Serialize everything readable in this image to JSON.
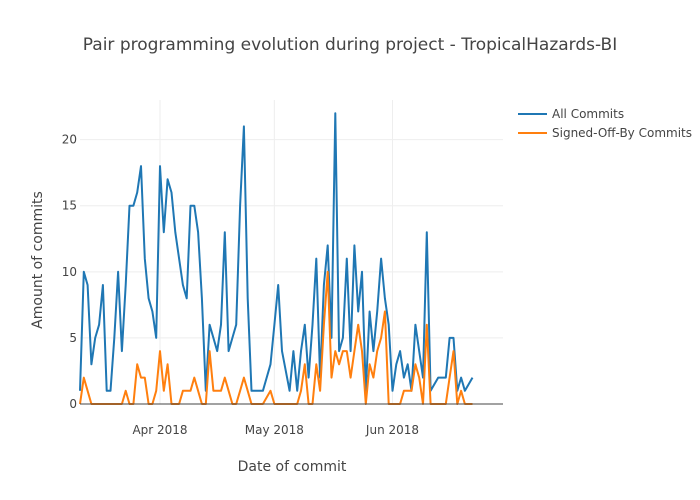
{
  "chart_data": {
    "type": "line",
    "title": "Pair programming evolution during project - TropicalHazards-BI",
    "xlabel": "Date of commit",
    "ylabel": "Amount of commits",
    "x_start": "2018-03-11",
    "x_end": "2018-06-30",
    "ylim": [
      0,
      23
    ],
    "yticks": [
      0,
      5,
      10,
      15,
      20
    ],
    "xticks": [
      {
        "date": "2018-04-01",
        "label": "Apr 2018"
      },
      {
        "date": "2018-05-01",
        "label": "May 2018"
      },
      {
        "date": "2018-06-01",
        "label": "Jun 2018"
      }
    ],
    "grid": true,
    "legend_position": "top-right",
    "series": [
      {
        "name": "All Commits",
        "color": "#1f77b4",
        "points": [
          [
            "2018-03-11",
            1
          ],
          [
            "2018-03-12",
            10
          ],
          [
            "2018-03-13",
            9
          ],
          [
            "2018-03-14",
            3
          ],
          [
            "2018-03-15",
            5
          ],
          [
            "2018-03-16",
            6
          ],
          [
            "2018-03-17",
            9
          ],
          [
            "2018-03-18",
            1
          ],
          [
            "2018-03-19",
            1
          ],
          [
            "2018-03-20",
            5
          ],
          [
            "2018-03-21",
            10
          ],
          [
            "2018-03-22",
            4
          ],
          [
            "2018-03-23",
            9
          ],
          [
            "2018-03-24",
            15
          ],
          [
            "2018-03-25",
            15
          ],
          [
            "2018-03-26",
            16
          ],
          [
            "2018-03-27",
            18
          ],
          [
            "2018-03-28",
            11
          ],
          [
            "2018-03-29",
            8
          ],
          [
            "2018-03-30",
            7
          ],
          [
            "2018-03-31",
            5
          ],
          [
            "2018-04-01",
            18
          ],
          [
            "2018-04-02",
            13
          ],
          [
            "2018-04-03",
            17
          ],
          [
            "2018-04-04",
            16
          ],
          [
            "2018-04-05",
            13
          ],
          [
            "2018-04-06",
            11
          ],
          [
            "2018-04-07",
            9
          ],
          [
            "2018-04-08",
            8
          ],
          [
            "2018-04-09",
            15
          ],
          [
            "2018-04-10",
            15
          ],
          [
            "2018-04-11",
            13
          ],
          [
            "2018-04-12",
            8
          ],
          [
            "2018-04-13",
            1
          ],
          [
            "2018-04-14",
            6
          ],
          [
            "2018-04-15",
            5
          ],
          [
            "2018-04-16",
            4
          ],
          [
            "2018-04-17",
            6
          ],
          [
            "2018-04-18",
            13
          ],
          [
            "2018-04-19",
            4
          ],
          [
            "2018-04-20",
            5
          ],
          [
            "2018-04-21",
            6
          ],
          [
            "2018-04-22",
            15
          ],
          [
            "2018-04-23",
            21
          ],
          [
            "2018-04-24",
            8
          ],
          [
            "2018-04-25",
            1
          ],
          [
            "2018-04-26",
            1
          ],
          [
            "2018-04-27",
            1
          ],
          [
            "2018-04-28",
            1
          ],
          [
            "2018-04-30",
            3
          ],
          [
            "2018-05-01",
            6
          ],
          [
            "2018-05-02",
            9
          ],
          [
            "2018-05-03",
            4
          ],
          [
            "2018-05-05",
            1
          ],
          [
            "2018-05-06",
            4
          ],
          [
            "2018-05-07",
            1
          ],
          [
            "2018-05-08",
            4
          ],
          [
            "2018-05-09",
            6
          ],
          [
            "2018-05-10",
            2
          ],
          [
            "2018-05-11",
            6
          ],
          [
            "2018-05-12",
            11
          ],
          [
            "2018-05-13",
            2
          ],
          [
            "2018-05-14",
            9
          ],
          [
            "2018-05-15",
            12
          ],
          [
            "2018-05-16",
            5
          ],
          [
            "2018-05-17",
            22
          ],
          [
            "2018-05-18",
            4
          ],
          [
            "2018-05-19",
            5
          ],
          [
            "2018-05-20",
            11
          ],
          [
            "2018-05-21",
            4
          ],
          [
            "2018-05-22",
            12
          ],
          [
            "2018-05-23",
            7
          ],
          [
            "2018-05-24",
            10
          ],
          [
            "2018-05-25",
            1
          ],
          [
            "2018-05-26",
            7
          ],
          [
            "2018-05-27",
            4
          ],
          [
            "2018-05-28",
            7
          ],
          [
            "2018-05-29",
            11
          ],
          [
            "2018-05-30",
            8
          ],
          [
            "2018-05-31",
            6
          ],
          [
            "2018-06-01",
            1
          ],
          [
            "2018-06-02",
            3
          ],
          [
            "2018-06-03",
            4
          ],
          [
            "2018-06-04",
            2
          ],
          [
            "2018-06-05",
            3
          ],
          [
            "2018-06-06",
            1
          ],
          [
            "2018-06-07",
            6
          ],
          [
            "2018-06-08",
            4
          ],
          [
            "2018-06-09",
            2
          ],
          [
            "2018-06-10",
            13
          ],
          [
            "2018-06-11",
            1
          ],
          [
            "2018-06-13",
            2
          ],
          [
            "2018-06-14",
            2
          ],
          [
            "2018-06-15",
            2
          ],
          [
            "2018-06-16",
            5
          ],
          [
            "2018-06-17",
            5
          ],
          [
            "2018-06-18",
            1
          ],
          [
            "2018-06-19",
            2
          ],
          [
            "2018-06-20",
            1
          ],
          [
            "2018-06-22",
            2
          ]
        ]
      },
      {
        "name": "Signed-Off-By Commits",
        "color": "#ff7f0e",
        "points": [
          [
            "2018-03-11",
            0
          ],
          [
            "2018-03-12",
            2
          ],
          [
            "2018-03-13",
            1
          ],
          [
            "2018-03-14",
            0
          ],
          [
            "2018-03-15",
            0
          ],
          [
            "2018-03-21",
            0
          ],
          [
            "2018-03-22",
            0
          ],
          [
            "2018-03-23",
            1
          ],
          [
            "2018-03-24",
            0
          ],
          [
            "2018-03-25",
            0
          ],
          [
            "2018-03-26",
            3
          ],
          [
            "2018-03-27",
            2
          ],
          [
            "2018-03-28",
            2
          ],
          [
            "2018-03-29",
            0
          ],
          [
            "2018-03-30",
            0
          ],
          [
            "2018-03-31",
            1
          ],
          [
            "2018-04-01",
            4
          ],
          [
            "2018-04-02",
            1
          ],
          [
            "2018-04-03",
            3
          ],
          [
            "2018-04-04",
            0
          ],
          [
            "2018-04-05",
            0
          ],
          [
            "2018-04-06",
            0
          ],
          [
            "2018-04-07",
            1
          ],
          [
            "2018-04-08",
            1
          ],
          [
            "2018-04-09",
            1
          ],
          [
            "2018-04-10",
            2
          ],
          [
            "2018-04-11",
            1
          ],
          [
            "2018-04-12",
            0
          ],
          [
            "2018-04-13",
            0
          ],
          [
            "2018-04-14",
            4
          ],
          [
            "2018-04-15",
            1
          ],
          [
            "2018-04-16",
            1
          ],
          [
            "2018-04-17",
            1
          ],
          [
            "2018-04-18",
            2
          ],
          [
            "2018-04-19",
            1
          ],
          [
            "2018-04-20",
            0
          ],
          [
            "2018-04-21",
            0
          ],
          [
            "2018-04-22",
            1
          ],
          [
            "2018-04-23",
            2
          ],
          [
            "2018-04-24",
            1
          ],
          [
            "2018-04-25",
            0
          ],
          [
            "2018-04-26",
            0
          ],
          [
            "2018-04-27",
            0
          ],
          [
            "2018-04-28",
            0
          ],
          [
            "2018-04-30",
            1
          ],
          [
            "2018-05-01",
            0
          ],
          [
            "2018-05-02",
            0
          ],
          [
            "2018-05-05",
            0
          ],
          [
            "2018-05-06",
            0
          ],
          [
            "2018-05-07",
            0
          ],
          [
            "2018-05-08",
            1
          ],
          [
            "2018-05-09",
            3
          ],
          [
            "2018-05-10",
            0
          ],
          [
            "2018-05-11",
            0
          ],
          [
            "2018-05-12",
            3
          ],
          [
            "2018-05-13",
            1
          ],
          [
            "2018-05-14",
            6
          ],
          [
            "2018-05-15",
            10
          ],
          [
            "2018-05-16",
            2
          ],
          [
            "2018-05-17",
            4
          ],
          [
            "2018-05-18",
            3
          ],
          [
            "2018-05-19",
            4
          ],
          [
            "2018-05-20",
            4
          ],
          [
            "2018-05-21",
            2
          ],
          [
            "2018-05-22",
            4
          ],
          [
            "2018-05-23",
            6
          ],
          [
            "2018-05-24",
            4
          ],
          [
            "2018-05-25",
            0
          ],
          [
            "2018-05-26",
            3
          ],
          [
            "2018-05-27",
            2
          ],
          [
            "2018-05-28",
            4
          ],
          [
            "2018-05-29",
            5
          ],
          [
            "2018-05-30",
            7
          ],
          [
            "2018-05-31",
            0
          ],
          [
            "2018-06-01",
            0
          ],
          [
            "2018-06-02",
            0
          ],
          [
            "2018-06-03",
            0
          ],
          [
            "2018-06-04",
            1
          ],
          [
            "2018-06-05",
            1
          ],
          [
            "2018-06-06",
            1
          ],
          [
            "2018-06-07",
            3
          ],
          [
            "2018-06-08",
            2
          ],
          [
            "2018-06-09",
            0
          ],
          [
            "2018-06-10",
            6
          ],
          [
            "2018-06-11",
            0
          ],
          [
            "2018-06-12",
            0
          ],
          [
            "2018-06-13",
            0
          ],
          [
            "2018-06-14",
            0
          ],
          [
            "2018-06-15",
            0
          ],
          [
            "2018-06-16",
            2
          ],
          [
            "2018-06-17",
            4
          ],
          [
            "2018-06-18",
            0
          ],
          [
            "2018-06-19",
            1
          ],
          [
            "2018-06-20",
            0
          ],
          [
            "2018-06-22",
            0
          ]
        ]
      }
    ]
  }
}
